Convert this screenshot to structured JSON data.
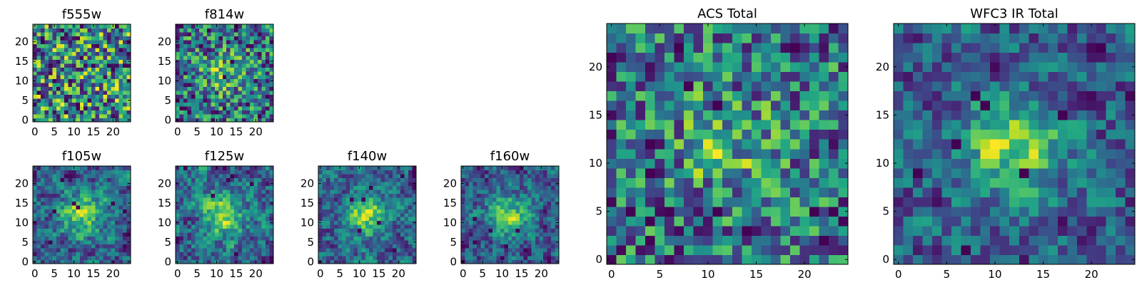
{
  "figure": {
    "background": "#ffffff"
  },
  "chart_data": [
    {
      "type": "heatmap",
      "title": "f555w",
      "xlabel": "",
      "ylabel": "",
      "xlim": [
        0,
        25
      ],
      "ylim": [
        0,
        25
      ],
      "x_ticks": [
        0,
        5,
        10,
        15,
        20
      ],
      "y_ticks": [
        0,
        5,
        10,
        15,
        20
      ],
      "grid": false,
      "colormap": "viridis",
      "texture": "fine-noise",
      "seed": 11
    },
    {
      "type": "heatmap",
      "title": "f814w",
      "xlabel": "",
      "ylabel": "",
      "xlim": [
        0,
        25
      ],
      "ylim": [
        0,
        25
      ],
      "x_ticks": [
        0,
        5,
        10,
        15,
        20
      ],
      "y_ticks": [
        0,
        5,
        10,
        15,
        20
      ],
      "grid": false,
      "colormap": "viridis",
      "texture": "noise-with-central-peak",
      "seed": 23
    },
    {
      "type": "heatmap",
      "title": "f105w",
      "xlabel": "",
      "ylabel": "",
      "xlim": [
        0,
        25
      ],
      "ylim": [
        0,
        25
      ],
      "x_ticks": [
        0,
        5,
        10,
        15,
        20
      ],
      "y_ticks": [
        0,
        5,
        10,
        15,
        20
      ],
      "grid": false,
      "colormap": "viridis",
      "texture": "smooth-with-central-peak",
      "seed": 37
    },
    {
      "type": "heatmap",
      "title": "f125w",
      "xlabel": "",
      "ylabel": "",
      "xlim": [
        0,
        25
      ],
      "ylim": [
        0,
        25
      ],
      "x_ticks": [
        0,
        5,
        10,
        15,
        20
      ],
      "y_ticks": [
        0,
        5,
        10,
        15,
        20
      ],
      "grid": false,
      "colormap": "viridis",
      "texture": "smooth-with-central-peak",
      "seed": 41
    },
    {
      "type": "heatmap",
      "title": "f140w",
      "xlabel": "",
      "ylabel": "",
      "xlim": [
        0,
        25
      ],
      "ylim": [
        0,
        25
      ],
      "x_ticks": [
        0,
        5,
        10,
        15,
        20
      ],
      "y_ticks": [
        0,
        5,
        10,
        15,
        20
      ],
      "grid": false,
      "colormap": "viridis",
      "texture": "smooth-with-central-peak",
      "seed": 53
    },
    {
      "type": "heatmap",
      "title": "f160w",
      "xlabel": "",
      "ylabel": "",
      "xlim": [
        0,
        25
      ],
      "ylim": [
        0,
        25
      ],
      "x_ticks": [
        0,
        5,
        10,
        15,
        20
      ],
      "y_ticks": [
        0,
        5,
        10,
        15,
        20
      ],
      "grid": false,
      "colormap": "viridis",
      "texture": "smooth-with-central-peak",
      "seed": 67
    },
    {
      "type": "heatmap",
      "title": "ACS Total",
      "xlabel": "",
      "ylabel": "",
      "xlim": [
        0,
        25
      ],
      "ylim": [
        0,
        25
      ],
      "x_ticks": [
        0,
        5,
        10,
        15,
        20
      ],
      "y_ticks": [
        0,
        5,
        10,
        15,
        20
      ],
      "grid": false,
      "colormap": "viridis",
      "texture": "noise-with-central-peak",
      "seed": 79
    },
    {
      "type": "heatmap",
      "title": "WFC3 IR Total",
      "xlabel": "",
      "ylabel": "",
      "xlim": [
        0,
        25
      ],
      "ylim": [
        0,
        25
      ],
      "x_ticks": [
        0,
        5,
        10,
        15,
        20
      ],
      "y_ticks": [
        0,
        5,
        10,
        15,
        20
      ],
      "grid": false,
      "colormap": "viridis",
      "texture": "smooth-with-central-peak",
      "seed": 97
    }
  ]
}
